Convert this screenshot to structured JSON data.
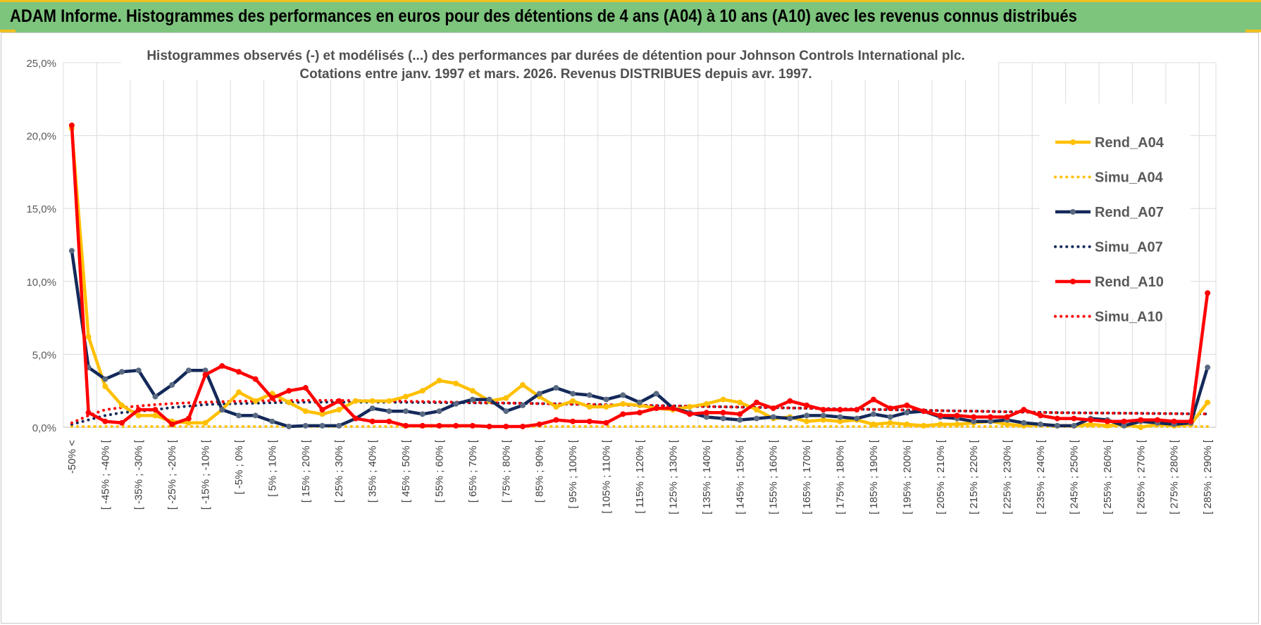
{
  "banner": {
    "title": "ADAM Informe. Histogrammes des performances en euros pour des détentions de 4 ans (A04) à 10 ans (A10) avec les revenus connus distribués"
  },
  "colors": {
    "banner_bg": "#7dc47d",
    "accent": "#f0c020",
    "A04": "#ffc000",
    "A07": "#14295a",
    "A07_marker": "#5a6a82",
    "A10": "#ff0000"
  },
  "chart_data": {
    "type": "line",
    "title": [
      "Histogrammes observés (-) et modélisés (...) des performances par durées de détention pour Johnson Controls International plc.",
      "Cotations entre janv. 1997 et mars. 2026.  Revenus DISTRIBUES depuis avr. 1997."
    ],
    "xlabel": "",
    "ylabel": "",
    "ylim": [
      0,
      25
    ],
    "y_ticks": [
      0,
      5,
      10,
      15,
      20,
      25
    ],
    "y_tick_labels": [
      "0,0%",
      "5,0%",
      "10,0%",
      "15,0%",
      "20,0%",
      "25,0%"
    ],
    "grid": true,
    "legend_position": "right",
    "bin_count": 69,
    "category_labels": [
      {
        "bin": 0,
        "label": "-50% <"
      },
      {
        "bin": 2,
        "label": "[ -45% ; -40% ["
      },
      {
        "bin": 4,
        "label": "[ -35% ; -30% ["
      },
      {
        "bin": 6,
        "label": "[ -25% ; -20% ["
      },
      {
        "bin": 8,
        "label": "[ -15% ; -10% ["
      },
      {
        "bin": 10,
        "label": "[ -5% ; 0% ["
      },
      {
        "bin": 12,
        "label": "[ 5% ; 10% ["
      },
      {
        "bin": 14,
        "label": "[ 15% ; 20% ["
      },
      {
        "bin": 16,
        "label": "[ 25% ; 30% ["
      },
      {
        "bin": 18,
        "label": "[ 35% ; 40% ["
      },
      {
        "bin": 20,
        "label": "[ 45% ; 50% ["
      },
      {
        "bin": 22,
        "label": "[ 55% ; 60% ["
      },
      {
        "bin": 24,
        "label": "[ 65% ; 70% ["
      },
      {
        "bin": 26,
        "label": "[ 75% ; 80% ["
      },
      {
        "bin": 28,
        "label": "[ 85% ; 90% ["
      },
      {
        "bin": 30,
        "label": "[ 95% ; 100% ["
      },
      {
        "bin": 32,
        "label": "[ 105% ; 110% ["
      },
      {
        "bin": 34,
        "label": "[ 115% ; 120% ["
      },
      {
        "bin": 36,
        "label": "[ 125% ; 130% ["
      },
      {
        "bin": 38,
        "label": "[ 135% ; 140% ["
      },
      {
        "bin": 40,
        "label": "[ 145% ; 150% ["
      },
      {
        "bin": 42,
        "label": "[ 155% ; 160% ["
      },
      {
        "bin": 44,
        "label": "[ 165% ; 170% ["
      },
      {
        "bin": 46,
        "label": "[ 175% ; 180% ["
      },
      {
        "bin": 48,
        "label": "[ 185% ; 190% ["
      },
      {
        "bin": 50,
        "label": "[ 195% ; 200% ["
      },
      {
        "bin": 52,
        "label": "[ 205% ; 210% ["
      },
      {
        "bin": 54,
        "label": "[ 215% ; 220% ["
      },
      {
        "bin": 56,
        "label": "[ 225% ; 230% ["
      },
      {
        "bin": 58,
        "label": "[ 235% ; 240% ["
      },
      {
        "bin": 60,
        "label": "[ 245% ; 250% ["
      },
      {
        "bin": 62,
        "label": "[ 255% ; 260% ["
      },
      {
        "bin": 64,
        "label": "[ 265% ; 270% ["
      },
      {
        "bin": 66,
        "label": "[ 275% ; 280% ["
      },
      {
        "bin": 68,
        "label": "[ 285% ; 290% ["
      }
    ],
    "series": [
      {
        "name": "Rend_A04",
        "color": "#ffc000",
        "style": "solid",
        "markers": true,
        "values": [
          20.5,
          6.2,
          2.8,
          1.5,
          0.8,
          0.8,
          0.4,
          0.3,
          0.3,
          1.2,
          2.4,
          1.8,
          2.3,
          1.7,
          1.1,
          0.9,
          1.2,
          1.8,
          1.8,
          1.8,
          2.1,
          2.5,
          3.2,
          3.0,
          2.5,
          1.8,
          2.0,
          2.9,
          2.1,
          1.4,
          1.8,
          1.4,
          1.4,
          1.6,
          1.5,
          1.3,
          1.2,
          1.4,
          1.6,
          1.9,
          1.7,
          1.2,
          0.6,
          0.7,
          0.4,
          0.5,
          0.4,
          0.5,
          0.2,
          0.3,
          0.2,
          0.1,
          0.2,
          0.2,
          0.3,
          0.4,
          0.2,
          0.1,
          0.2,
          0.1,
          0.1,
          0.2,
          0.1,
          0.2,
          0.0,
          0.2,
          0.1,
          0.2,
          1.7
        ]
      },
      {
        "name": "Simu_A04",
        "color": "#ffc000",
        "style": "dotted",
        "markers": false,
        "values": [
          0.05,
          0.05,
          0.05,
          0.05,
          0.05,
          0.05,
          0.05,
          0.05,
          0.05,
          0.05,
          0.05,
          0.05,
          0.05,
          0.05,
          0.05,
          0.05,
          0.05,
          0.05,
          0.05,
          0.05,
          0.05,
          0.05,
          0.05,
          0.05,
          0.05,
          0.05,
          0.05,
          0.05,
          0.05,
          0.05,
          0.05,
          0.05,
          0.05,
          0.05,
          0.05,
          0.05,
          0.05,
          0.05,
          0.05,
          0.05,
          0.05,
          0.05,
          0.05,
          0.05,
          0.05,
          0.05,
          0.05,
          0.05,
          0.05,
          0.05,
          0.05,
          0.05,
          0.05,
          0.05,
          0.05,
          0.05,
          0.05,
          0.05,
          0.05,
          0.05,
          0.05,
          0.05,
          0.05,
          0.05,
          0.05,
          0.05,
          0.05,
          0.05,
          0.05
        ]
      },
      {
        "name": "Rend_A07",
        "color": "#14295a",
        "style": "solid",
        "markers": true,
        "values": [
          12.1,
          4.1,
          3.3,
          3.8,
          3.9,
          2.1,
          2.9,
          3.9,
          3.9,
          1.2,
          0.8,
          0.8,
          0.4,
          0.05,
          0.1,
          0.1,
          0.1,
          0.6,
          1.3,
          1.1,
          1.1,
          0.9,
          1.1,
          1.6,
          1.9,
          1.9,
          1.1,
          1.5,
          2.3,
          2.7,
          2.3,
          2.2,
          1.9,
          2.2,
          1.7,
          2.3,
          1.3,
          1.0,
          0.7,
          0.6,
          0.5,
          0.6,
          0.7,
          0.6,
          0.8,
          0.8,
          0.7,
          0.6,
          0.9,
          0.7,
          1.0,
          1.1,
          0.7,
          0.6,
          0.4,
          0.4,
          0.5,
          0.3,
          0.2,
          0.1,
          0.1,
          0.6,
          0.5,
          0.1,
          0.4,
          0.3,
          0.2,
          0.3,
          4.1
        ]
      },
      {
        "name": "Simu_A07",
        "color": "#14295a",
        "style": "dotted",
        "markers": false,
        "values": [
          0.2,
          0.5,
          0.8,
          1.0,
          1.1,
          1.2,
          1.35,
          1.45,
          1.55,
          1.6,
          1.62,
          1.65,
          1.68,
          1.7,
          1.72,
          1.72,
          1.72,
          1.72,
          1.72,
          1.72,
          1.71,
          1.7,
          1.69,
          1.68,
          1.67,
          1.66,
          1.65,
          1.64,
          1.62,
          1.6,
          1.58,
          1.56,
          1.54,
          1.52,
          1.5,
          1.48,
          1.46,
          1.44,
          1.42,
          1.4,
          1.38,
          1.36,
          1.34,
          1.32,
          1.3,
          1.28,
          1.26,
          1.24,
          1.22,
          1.2,
          1.18,
          1.16,
          1.14,
          1.12,
          1.1,
          1.08,
          1.06,
          1.04,
          1.02,
          1.0,
          0.99,
          0.98,
          0.97,
          0.96,
          0.95,
          0.94,
          0.93,
          0.92,
          0.91
        ]
      },
      {
        "name": "Rend_A10",
        "color": "#ff0000",
        "style": "solid",
        "markers": true,
        "values": [
          20.7,
          1.0,
          0.4,
          0.3,
          1.2,
          1.2,
          0.2,
          0.6,
          3.6,
          4.2,
          3.8,
          3.3,
          2.0,
          2.5,
          2.7,
          1.2,
          1.8,
          0.6,
          0.4,
          0.4,
          0.1,
          0.1,
          0.1,
          0.1,
          0.1,
          0.05,
          0.05,
          0.05,
          0.2,
          0.5,
          0.4,
          0.4,
          0.3,
          0.9,
          1.0,
          1.3,
          1.3,
          0.9,
          1.0,
          1.0,
          0.9,
          1.7,
          1.3,
          1.8,
          1.5,
          1.2,
          1.2,
          1.2,
          1.9,
          1.3,
          1.5,
          1.1,
          0.8,
          0.8,
          0.7,
          0.7,
          0.7,
          1.2,
          0.8,
          0.6,
          0.6,
          0.5,
          0.4,
          0.4,
          0.5,
          0.5,
          0.4,
          0.4,
          9.2
        ]
      },
      {
        "name": "Simu_A10",
        "color": "#ff0000",
        "style": "dotted",
        "markers": false,
        "values": [
          0.3,
          0.8,
          1.2,
          1.35,
          1.45,
          1.55,
          1.62,
          1.68,
          1.72,
          1.75,
          1.78,
          1.8,
          1.82,
          1.83,
          1.84,
          1.84,
          1.84,
          1.83,
          1.82,
          1.8,
          1.78,
          1.76,
          1.74,
          1.72,
          1.7,
          1.68,
          1.66,
          1.64,
          1.62,
          1.6,
          1.58,
          1.56,
          1.54,
          1.52,
          1.5,
          1.48,
          1.46,
          1.44,
          1.42,
          1.4,
          1.38,
          1.36,
          1.34,
          1.32,
          1.3,
          1.28,
          1.26,
          1.24,
          1.22,
          1.2,
          1.18,
          1.16,
          1.14,
          1.12,
          1.1,
          1.08,
          1.06,
          1.04,
          1.02,
          1.0,
          0.99,
          0.98,
          0.97,
          0.96,
          0.95,
          0.94,
          0.93,
          0.92,
          0.91
        ]
      }
    ]
  }
}
